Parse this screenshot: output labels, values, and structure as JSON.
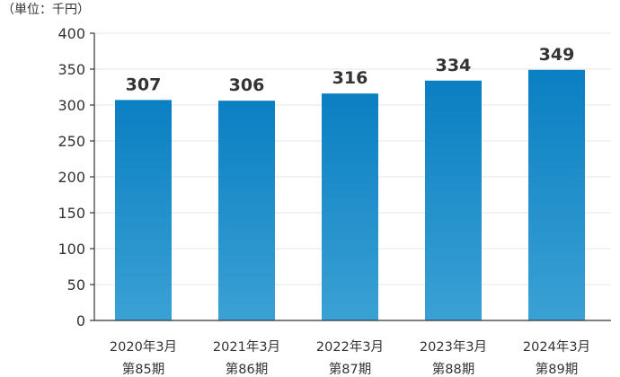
{
  "unit_label": "（単位：千円）",
  "chart_data": {
    "type": "bar",
    "title": "",
    "xlabel": "",
    "ylabel": "（単位：千円）",
    "categories": [
      [
        "2020年3月",
        "第85期"
      ],
      [
        "2021年3月",
        "第86期"
      ],
      [
        "2022年3月",
        "第87期"
      ],
      [
        "2023年3月",
        "第88期"
      ],
      [
        "2024年3月",
        "第89期"
      ]
    ],
    "values": [
      307,
      306,
      316,
      334,
      349
    ],
    "ylim": [
      0,
      400
    ],
    "yticks": [
      0,
      50,
      100,
      150,
      200,
      250,
      300,
      350,
      400
    ],
    "grid": true,
    "bar_color_top": "#0a7fc2",
    "bar_color_bottom": "#3aa1d4"
  }
}
